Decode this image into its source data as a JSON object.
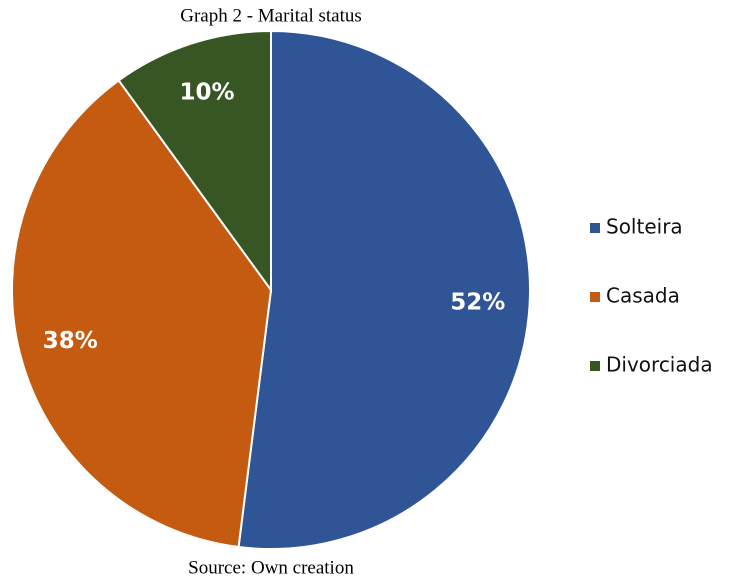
{
  "chart_data": {
    "type": "pie",
    "title": "Graph 2 - Marital status",
    "categories": [
      "Solteira",
      "Casada",
      "Divorciada"
    ],
    "values": [
      52,
      38,
      10
    ],
    "value_labels": [
      "52%",
      "38%",
      "10%"
    ],
    "colors": [
      "#2f5597",
      "#c55a11",
      "#375623"
    ],
    "legend": "right",
    "source": "Source: Own creation"
  }
}
